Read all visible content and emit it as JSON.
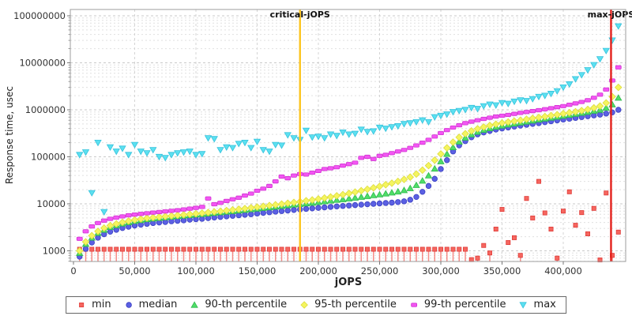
{
  "chart_data": {
    "type": "scatter",
    "title": "",
    "xlabel": "jOPS",
    "ylabel": "Response time, usec",
    "grid": true,
    "legend_position": "bottom",
    "x_axis": {
      "min": 0,
      "max": 450000,
      "ticks": [
        {
          "value": 0,
          "label": "0"
        },
        {
          "value": 50000,
          "label": "50,000"
        },
        {
          "value": 100000,
          "label": "100,000"
        },
        {
          "value": 150000,
          "label": "150,000"
        },
        {
          "value": 200000,
          "label": "200,000"
        },
        {
          "value": 250000,
          "label": "250,000"
        },
        {
          "value": 300000,
          "label": "300,000"
        },
        {
          "value": 350000,
          "label": "350,000"
        },
        {
          "value": 400000,
          "label": "400,000"
        }
      ]
    },
    "y_axis": {
      "scale": "log",
      "min": 1000,
      "max": 100000000,
      "ticks": [
        {
          "value": 1000,
          "label": "1000"
        },
        {
          "value": 10000,
          "label": "10000"
        },
        {
          "value": 100000,
          "label": "100000"
        },
        {
          "value": 1000000,
          "label": "1000000"
        },
        {
          "value": 10000000,
          "label": "10000000"
        },
        {
          "value": 100000000,
          "label": "100000000"
        }
      ]
    },
    "annotations": [
      {
        "label": "critical-jOPS",
        "x": 185000,
        "color": "#FCC41D"
      },
      {
        "label": "max-jOPS",
        "x": 439000,
        "color": "#E3201B"
      }
    ],
    "x": [
      5000,
      10000,
      15000,
      20000,
      25000,
      30000,
      35000,
      40000,
      45000,
      50000,
      55000,
      60000,
      65000,
      70000,
      75000,
      80000,
      85000,
      90000,
      95000,
      100000,
      105000,
      110000,
      115000,
      120000,
      125000,
      130000,
      135000,
      140000,
      145000,
      150000,
      155000,
      160000,
      165000,
      170000,
      175000,
      180000,
      185000,
      190000,
      195000,
      200000,
      205000,
      210000,
      215000,
      220000,
      225000,
      230000,
      235000,
      240000,
      245000,
      250000,
      255000,
      260000,
      265000,
      270000,
      275000,
      280000,
      285000,
      290000,
      295000,
      300000,
      305000,
      310000,
      315000,
      320000,
      325000,
      330000,
      335000,
      340000,
      345000,
      350000,
      355000,
      360000,
      365000,
      370000,
      375000,
      380000,
      385000,
      390000,
      395000,
      400000,
      405000,
      410000,
      415000,
      420000,
      425000,
      430000,
      435000,
      440000,
      445000
    ],
    "series": [
      {
        "name": "min",
        "marker": "square",
        "color": "#F5665F",
        "edge": "#E03B38",
        "stem_below": 1200,
        "values": [
          1080,
          1080,
          1080,
          1080,
          1080,
          1080,
          1080,
          1080,
          1080,
          1080,
          1080,
          1080,
          1080,
          1080,
          1080,
          1080,
          1080,
          1080,
          1080,
          1080,
          1080,
          1080,
          1080,
          1080,
          1080,
          1080,
          1080,
          1080,
          1080,
          1080,
          1080,
          1080,
          1080,
          1080,
          1080,
          1080,
          1080,
          1080,
          1080,
          1080,
          1080,
          1080,
          1080,
          1080,
          1080,
          1080,
          1080,
          1080,
          1080,
          1080,
          1080,
          1080,
          1080,
          1080,
          1080,
          1080,
          1080,
          1080,
          1080,
          1080,
          1080,
          1080,
          1080,
          1080,
          650,
          700,
          1300,
          900,
          2900,
          7600,
          1500,
          1900,
          800,
          13000,
          5000,
          30000,
          6400,
          2900,
          700,
          7000,
          18000,
          3500,
          6500,
          2300,
          8000,
          640,
          17000,
          800,
          2500
        ]
      },
      {
        "name": "median",
        "marker": "circle",
        "color": "#5B60E3",
        "edge": "#3A3FC2",
        "values": [
          750,
          1100,
          1500,
          1900,
          2250,
          2550,
          2800,
          3050,
          3250,
          3450,
          3600,
          3750,
          3900,
          4000,
          4100,
          4250,
          4350,
          4450,
          4600,
          4700,
          4800,
          4950,
          5100,
          5250,
          5400,
          5550,
          5700,
          5850,
          6000,
          6200,
          6400,
          6600,
          6800,
          7000,
          7200,
          7400,
          7600,
          7800,
          8000,
          8200,
          8400,
          8600,
          8800,
          9000,
          9200,
          9400,
          9600,
          9800,
          10000,
          10200,
          10400,
          10600,
          10900,
          11300,
          12200,
          14000,
          18000,
          24000,
          34000,
          55000,
          85000,
          130000,
          175000,
          215000,
          260000,
          300000,
          330000,
          355000,
          380000,
          400000,
          420000,
          440000,
          460000,
          480000,
          500000,
          520000,
          545000,
          570000,
          595000,
          620000,
          645000,
          670000,
          700000,
          730000,
          760000,
          790000,
          830000,
          880000,
          1000000
        ]
      },
      {
        "name": "90-th percentile",
        "marker": "triangle-up",
        "color": "#4FDD68",
        "edge": "#2FB94C",
        "values": [
          900,
          1400,
          1900,
          2400,
          2800,
          3200,
          3500,
          3800,
          4050,
          4300,
          4500,
          4700,
          4850,
          5000,
          5150,
          5300,
          5450,
          5600,
          5750,
          5900,
          6050,
          6200,
          6400,
          6600,
          6800,
          7000,
          7200,
          7400,
          7650,
          7900,
          8150,
          8400,
          8700,
          9000,
          9300,
          9600,
          9900,
          10200,
          10500,
          10900,
          11300,
          11700,
          12100,
          12500,
          13000,
          13500,
          14000,
          14600,
          15200,
          15800,
          16500,
          17300,
          18200,
          19500,
          21500,
          25000,
          31000,
          40000,
          56000,
          80000,
          115000,
          160000,
          210000,
          255000,
          300000,
          340000,
          375000,
          405000,
          435000,
          460000,
          485000,
          510000,
          535000,
          560000,
          590000,
          620000,
          650000,
          680000,
          710000,
          745000,
          780000,
          820000,
          860000,
          900000,
          950000,
          1000000,
          1100000,
          1300000,
          1800000
        ]
      },
      {
        "name": "95-th percentile",
        "marker": "diamond",
        "color": "#F5F55F",
        "edge": "#DCDC3C",
        "values": [
          1000,
          1550,
          2100,
          2600,
          3050,
          3450,
          3750,
          4050,
          4300,
          4550,
          4750,
          4950,
          5100,
          5250,
          5400,
          5550,
          5700,
          5850,
          6000,
          6150,
          6350,
          6550,
          6750,
          6950,
          7200,
          7450,
          7700,
          7950,
          8250,
          8550,
          8850,
          9200,
          9550,
          9900,
          10300,
          10700,
          11100,
          11600,
          12100,
          12700,
          13300,
          14000,
          14800,
          15700,
          16700,
          17800,
          19000,
          20400,
          21900,
          23500,
          25500,
          27500,
          30000,
          33000,
          37000,
          43000,
          52000,
          65000,
          85000,
          115000,
          155000,
          205000,
          260000,
          310000,
          355000,
          395000,
          430000,
          465000,
          495000,
          525000,
          550000,
          575000,
          600000,
          630000,
          660000,
          690000,
          720000,
          755000,
          790000,
          830000,
          870000,
          910000,
          960000,
          1020000,
          1100000,
          1200000,
          1400000,
          1900000,
          3000000
        ]
      },
      {
        "name": "99-th percentile",
        "marker": "hbar",
        "color": "#F356F3",
        "edge": "#D232D2",
        "values": [
          1800,
          2600,
          3300,
          3900,
          4400,
          4800,
          5100,
          5400,
          5700,
          5900,
          6100,
          6300,
          6500,
          6700,
          6900,
          7100,
          7300,
          7600,
          7900,
          8200,
          8600,
          13000,
          9800,
          10500,
          11500,
          12500,
          13500,
          15000,
          16500,
          19000,
          21000,
          24000,
          30000,
          38000,
          35000,
          40000,
          43000,
          42000,
          46000,
          50000,
          55000,
          57000,
          60000,
          65000,
          70000,
          75000,
          95000,
          100000,
          90000,
          105000,
          110000,
          120000,
          130000,
          140000,
          155000,
          175000,
          200000,
          230000,
          270000,
          320000,
          370000,
          420000,
          470000,
          520000,
          560000,
          600000,
          640000,
          680000,
          720000,
          750000,
          780000,
          820000,
          860000,
          900000,
          940000,
          980000,
          1030000,
          1080000,
          1140000,
          1200000,
          1280000,
          1370000,
          1470000,
          1600000,
          1800000,
          2100000,
          2700000,
          4200000,
          8000000
        ]
      },
      {
        "name": "max",
        "marker": "triangle-down",
        "color": "#5CE0F0",
        "edge": "#35C2DC",
        "values": [
          110000,
          125000,
          17000,
          200000,
          6700,
          160000,
          130000,
          150000,
          110000,
          180000,
          130000,
          120000,
          140000,
          100000,
          95000,
          110000,
          120000,
          125000,
          130000,
          110000,
          115000,
          250000,
          240000,
          140000,
          160000,
          155000,
          190000,
          200000,
          155000,
          210000,
          140000,
          130000,
          180000,
          175000,
          290000,
          250000,
          230000,
          360000,
          260000,
          270000,
          250000,
          300000,
          280000,
          330000,
          300000,
          310000,
          380000,
          340000,
          350000,
          420000,
          400000,
          430000,
          450000,
          500000,
          520000,
          550000,
          600000,
          550000,
          700000,
          750000,
          800000,
          900000,
          950000,
          1000000,
          1100000,
          1050000,
          1200000,
          1300000,
          1250000,
          1400000,
          1350000,
          1500000,
          1600000,
          1550000,
          1700000,
          1900000,
          2000000,
          2200000,
          2500000,
          3000000,
          3500000,
          4500000,
          5500000,
          7000000,
          9000000,
          12000000,
          18000000,
          30000000,
          60000000
        ]
      }
    ]
  }
}
